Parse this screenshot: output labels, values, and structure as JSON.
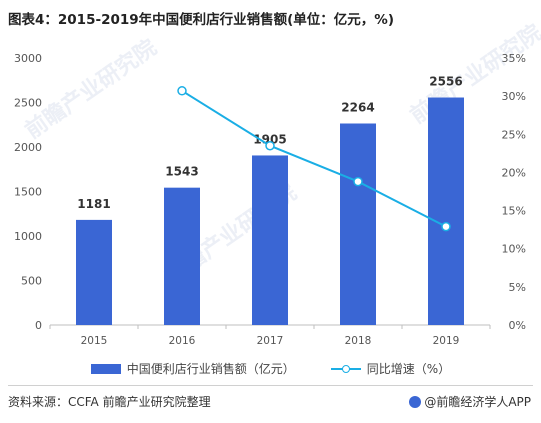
{
  "title": "图表4：2015-2019年中国便利店行业销售额(单位：亿元，%)",
  "chart_data": {
    "type": "bar",
    "categories": [
      "2015",
      "2016",
      "2017",
      "2018",
      "2019"
    ],
    "series": [
      {
        "name": "中国便利店行业销售额（亿元）",
        "type": "bar",
        "axis": "left",
        "values": [
          1181,
          1543,
          1905,
          2264,
          2556
        ],
        "color": "#3a66d4"
      },
      {
        "name": "同比增速（%）",
        "type": "line",
        "axis": "right",
        "values": [
          null,
          30.7,
          23.5,
          18.8,
          12.9
        ],
        "color": "#1aaee5"
      }
    ],
    "y_left": {
      "lim": [
        0,
        3000
      ],
      "ticks": [
        0,
        500,
        1000,
        1500,
        2000,
        2500,
        3000
      ]
    },
    "y_right": {
      "lim": [
        0,
        35
      ],
      "ticks": [
        "0%",
        "5%",
        "10%",
        "15%",
        "20%",
        "25%",
        "30%",
        "35%"
      ]
    },
    "grid": false,
    "legend_position": "bottom"
  },
  "footer": {
    "source": "资料来源：CCFA 前瞻产业研究院整理",
    "brand": "@前瞻经济学人APP"
  },
  "watermark": {
    "text": "前瞻产业研究院"
  }
}
